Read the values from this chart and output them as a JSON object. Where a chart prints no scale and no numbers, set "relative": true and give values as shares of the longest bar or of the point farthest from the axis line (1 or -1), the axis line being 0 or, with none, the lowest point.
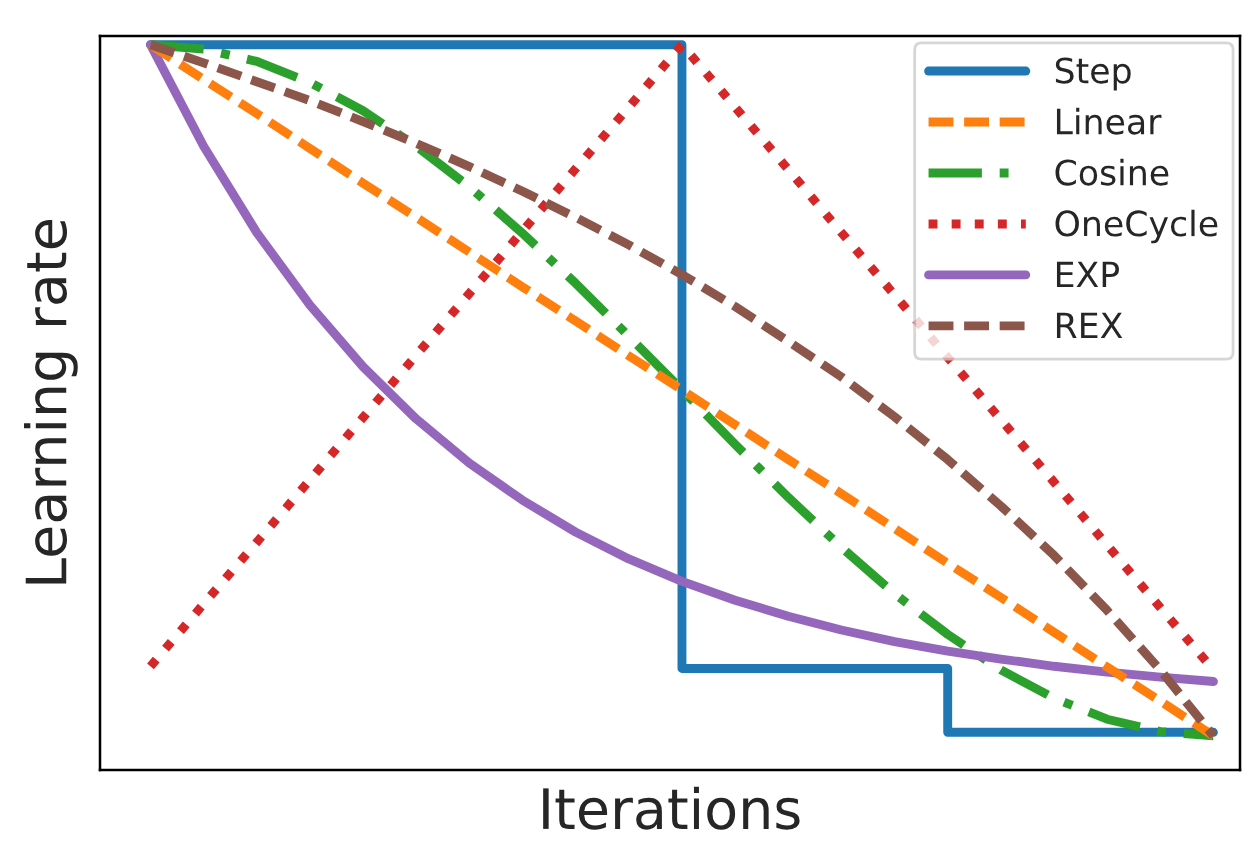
{
  "chart_data": {
    "type": "line",
    "relative": true,
    "xlabel": "Iterations",
    "ylabel": "Learning rate",
    "tick_labels": false,
    "legend": "top right",
    "categories": [
      null,
      null,
      null,
      null,
      null,
      null,
      null,
      null,
      null,
      null,
      null,
      null,
      null,
      null,
      null,
      null,
      null,
      null,
      null,
      null,
      null
    ],
    "series": [
      {
        "name": "Step",
        "type": "step",
        "color": "#1f77b4",
        "line_style": "solid",
        "values": [
          1,
          1,
          1,
          1,
          1,
          1,
          1,
          1,
          1,
          1,
          0.14,
          0.14,
          0.14,
          0.14,
          0.14,
          0.052,
          0.052,
          0.052,
          0.052,
          0.052,
          0.052
        ]
      },
      {
        "name": "Linear",
        "color": "#ff7f0e",
        "line_style": "dashed",
        "values": [
          1,
          0.952,
          0.905,
          0.857,
          0.809,
          0.762,
          0.714,
          0.666,
          0.619,
          0.571,
          0.524,
          0.476,
          0.428,
          0.381,
          0.333,
          0.285,
          0.238,
          0.19,
          0.142,
          0.095,
          0.047
        ]
      },
      {
        "name": "Cosine",
        "color": "#2ca02c",
        "line_style": "dashdot",
        "values": [
          1,
          0.994,
          0.977,
          0.948,
          0.909,
          0.86,
          0.804,
          0.74,
          0.671,
          0.598,
          0.524,
          0.449,
          0.376,
          0.307,
          0.243,
          0.187,
          0.138,
          0.099,
          0.07,
          0.053,
          0.047
        ]
      },
      {
        "name": "OneCycle",
        "color": "#d62728",
        "line_style": "dotted",
        "values": [
          0.143,
          0.229,
          0.314,
          0.4,
          0.486,
          0.572,
          0.657,
          0.743,
          0.829,
          0.914,
          1,
          0.914,
          0.828,
          0.741,
          0.655,
          0.569,
          0.483,
          0.397,
          0.31,
          0.224,
          0.138
        ]
      },
      {
        "name": "EXP",
        "color": "#9467bd",
        "line_style": "solid",
        "values": [
          1,
          0.86,
          0.741,
          0.641,
          0.556,
          0.484,
          0.423,
          0.372,
          0.328,
          0.291,
          0.26,
          0.234,
          0.212,
          0.193,
          0.177,
          0.164,
          0.153,
          0.143,
          0.135,
          0.128,
          0.122
        ]
      },
      {
        "name": "REX",
        "color": "#8c564b",
        "line_style": "dashed",
        "values": [
          1,
          0.975,
          0.949,
          0.923,
          0.894,
          0.864,
          0.832,
          0.798,
          0.762,
          0.724,
          0.683,
          0.639,
          0.591,
          0.542,
          0.487,
          0.428,
          0.364,
          0.296,
          0.22,
          0.138,
          0.047
        ]
      }
    ]
  }
}
